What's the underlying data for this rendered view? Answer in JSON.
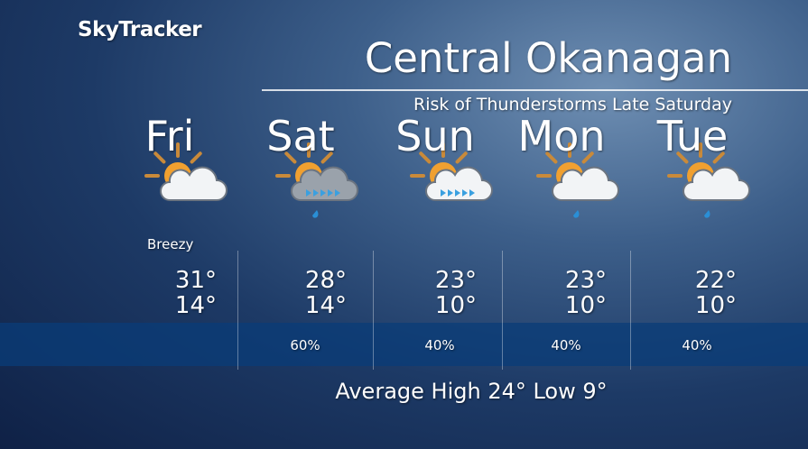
{
  "brand": "SkyTracker",
  "title": "Central Okanagan",
  "subtitle": "Risk of Thunderstorms Late Saturday",
  "days": [
    {
      "name": "Fri",
      "note": "Breezy",
      "high": "31°",
      "low": "14°"
    },
    {
      "name": "Sat",
      "high": "28°",
      "low": "14°",
      "pop": "60%"
    },
    {
      "name": "Sun",
      "high": "23°",
      "low": "10°",
      "pop": "40%"
    },
    {
      "name": "Mon",
      "high": "23°",
      "low": "10°",
      "pop": "40%"
    },
    {
      "name": "Tue",
      "high": "22°",
      "low": "10°",
      "pop": "40%"
    }
  ],
  "footer": "Average High 24° Low 9°"
}
